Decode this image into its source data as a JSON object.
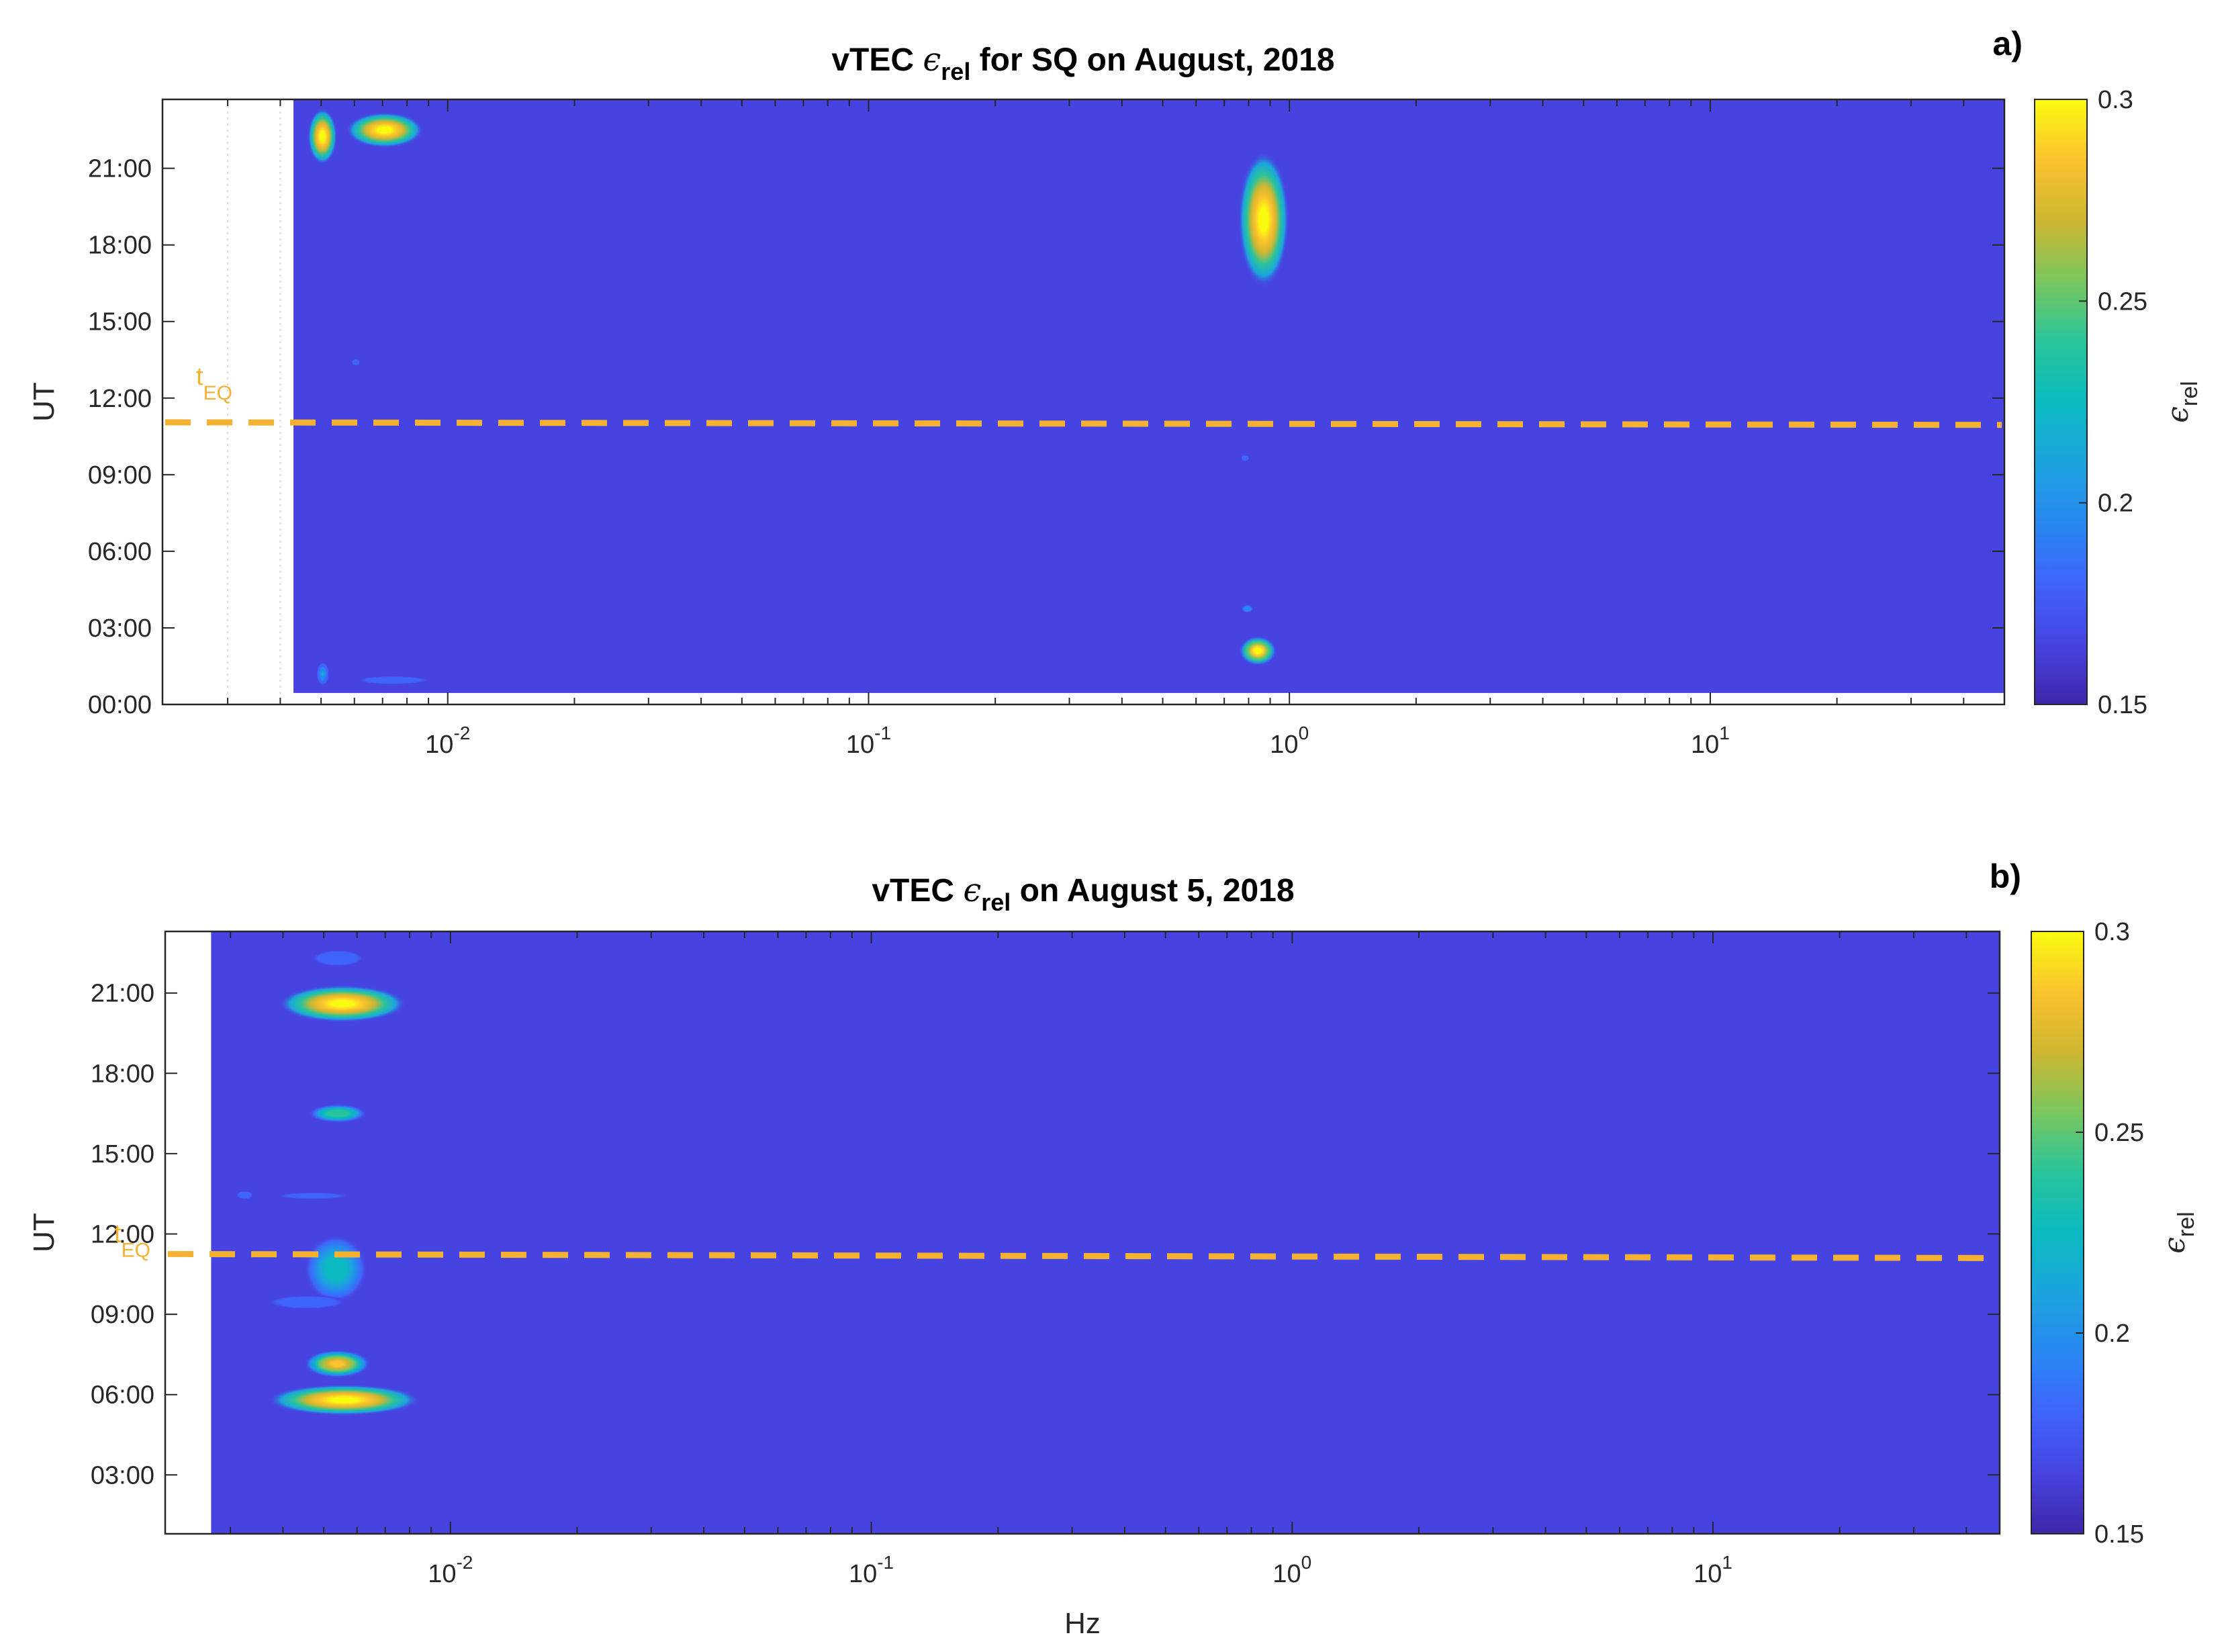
{
  "chart_data": [
    {
      "type": "heatmap",
      "panel_label": "a)",
      "title": {
        "pre": "vTEC ",
        "sym": "ϵ",
        "sub": "rel",
        "post": " for SQ on August, 2018"
      },
      "xlabel": "",
      "ylabel": "UT",
      "x_scale": "log",
      "xlim": [
        0.0021,
        50
      ],
      "ylim_hours": [
        0,
        23.7
      ],
      "x_ticks": [
        {
          "value": 0.01,
          "base": "10",
          "exp": "-2"
        },
        {
          "value": 0.1,
          "base": "10",
          "exp": "-1"
        },
        {
          "value": 1,
          "base": "10",
          "exp": "0"
        },
        {
          "value": 10,
          "base": "10",
          "exp": "1"
        }
      ],
      "y_ticks": [
        {
          "value": 0,
          "label": "00:00"
        },
        {
          "value": 3,
          "label": "03:00"
        },
        {
          "value": 6,
          "label": "06:00"
        },
        {
          "value": 9,
          "label": "09:00"
        },
        {
          "value": 12,
          "label": "12:00"
        },
        {
          "value": 15,
          "label": "15:00"
        },
        {
          "value": 18,
          "label": "18:00"
        },
        {
          "value": 21,
          "label": "21:00"
        }
      ],
      "data_x_start": 0.0043,
      "data_y_start": 0.45,
      "grid": "x-minor-dotted-in-empty-region",
      "background_value": 0.15,
      "hotspots": [
        {
          "f_min": 0.0047,
          "f_max": 0.0054,
          "t_min": 21.3,
          "t_max": 23.2,
          "peak": 0.3
        },
        {
          "f_min": 0.0059,
          "f_max": 0.0085,
          "t_min": 21.9,
          "t_max": 23.1,
          "peak": 0.3
        },
        {
          "f_min": 0.77,
          "f_max": 0.98,
          "t_min": 16.7,
          "t_max": 21.3,
          "peak": 0.3
        },
        {
          "f_min": 0.77,
          "f_max": 0.92,
          "t_min": 1.6,
          "t_max": 2.6,
          "peak": 0.29
        },
        {
          "f_min": 0.77,
          "f_max": 0.82,
          "t_min": 3.6,
          "t_max": 3.9,
          "peak": 0.19
        },
        {
          "f_min": 0.0049,
          "f_max": 0.0052,
          "t_min": 0.8,
          "t_max": 1.6,
          "peak": 0.2
        },
        {
          "f_min": 0.0061,
          "f_max": 0.009,
          "t_min": 0.8,
          "t_max": 1.1,
          "peak": 0.18
        },
        {
          "f_min": 0.77,
          "f_max": 0.8,
          "t_min": 9.5,
          "t_max": 9.8,
          "peak": 0.17
        },
        {
          "f_min": 0.0059,
          "f_max": 0.0062,
          "t_min": 13.3,
          "t_max": 13.5,
          "peak": 0.17
        }
      ],
      "eq_marker": {
        "hour_start": 11.05,
        "hour_end": 10.95,
        "label_base": "t",
        "label_sub": "EQ",
        "color": "#F5B131"
      },
      "colorbar": {
        "min": 0.15,
        "max": 0.3,
        "ticks": [
          {
            "value": 0.3,
            "label": "0.3"
          },
          {
            "value": 0.25,
            "label": "0.25"
          },
          {
            "value": 0.2,
            "label": "0.2"
          },
          {
            "value": 0.15,
            "label": "0.15"
          }
        ],
        "label_sym": "ϵ",
        "label_sub": "rel",
        "colormap": "parula"
      }
    },
    {
      "type": "heatmap",
      "panel_label": "b)",
      "title": {
        "pre": "vTEC ",
        "sym": "ϵ",
        "sub": "rel",
        "post": " on August 5, 2018"
      },
      "xlabel": "Hz",
      "ylabel": "UT",
      "x_scale": "log",
      "xlim": [
        0.0021,
        48
      ],
      "ylim_hours": [
        0.8,
        23.3
      ],
      "x_ticks": [
        {
          "value": 0.01,
          "base": "10",
          "exp": "-2"
        },
        {
          "value": 0.1,
          "base": "10",
          "exp": "-1"
        },
        {
          "value": 1,
          "base": "10",
          "exp": "0"
        },
        {
          "value": 10,
          "base": "10",
          "exp": "1"
        }
      ],
      "y_ticks": [
        {
          "value": 3,
          "label": "03:00"
        },
        {
          "value": 6,
          "label": "06:00"
        },
        {
          "value": 9,
          "label": "09:00"
        },
        {
          "value": 12,
          "label": "12:00"
        },
        {
          "value": 15,
          "label": "15:00"
        },
        {
          "value": 18,
          "label": "18:00"
        },
        {
          "value": 21,
          "label": "21:00"
        }
      ],
      "data_x_start": 0.0027,
      "data_y_start": 0.8,
      "grid": "none",
      "background_value": 0.15,
      "hotspots": [
        {
          "f_min": 0.0041,
          "f_max": 0.0075,
          "t_min": 20.0,
          "t_max": 21.2,
          "peak": 0.3
        },
        {
          "f_min": 0.0047,
          "f_max": 0.0062,
          "t_min": 22.0,
          "t_max": 22.6,
          "peak": 0.18
        },
        {
          "f_min": 0.0047,
          "f_max": 0.0062,
          "t_min": 16.2,
          "t_max": 16.8,
          "peak": 0.24
        },
        {
          "f_min": 0.0046,
          "f_max": 0.0062,
          "t_min": 9.6,
          "t_max": 11.8,
          "peak": 0.22
        },
        {
          "f_min": 0.0037,
          "f_max": 0.0056,
          "t_min": 9.2,
          "t_max": 9.7,
          "peak": 0.18
        },
        {
          "f_min": 0.0046,
          "f_max": 0.0063,
          "t_min": 6.7,
          "t_max": 7.6,
          "peak": 0.28
        },
        {
          "f_min": 0.0039,
          "f_max": 0.008,
          "t_min": 5.3,
          "t_max": 6.3,
          "peak": 0.3
        },
        {
          "f_min": 0.0031,
          "f_max": 0.0034,
          "t_min": 13.3,
          "t_max": 13.6,
          "peak": 0.18
        },
        {
          "f_min": 0.0037,
          "f_max": 0.006,
          "t_min": 13.35,
          "t_max": 13.5,
          "peak": 0.17
        }
      ],
      "eq_marker": {
        "hour_start": 11.25,
        "hour_end": 11.1,
        "label_base": "t",
        "label_sub": "EQ",
        "color": "#F5B131"
      },
      "colorbar": {
        "min": 0.15,
        "max": 0.3,
        "ticks": [
          {
            "value": 0.3,
            "label": "0.3"
          },
          {
            "value": 0.25,
            "label": "0.25"
          },
          {
            "value": 0.2,
            "label": "0.2"
          },
          {
            "value": 0.15,
            "label": "0.15"
          }
        ],
        "label_sym": "ϵ",
        "label_sub": "rel",
        "colormap": "parula"
      }
    }
  ]
}
